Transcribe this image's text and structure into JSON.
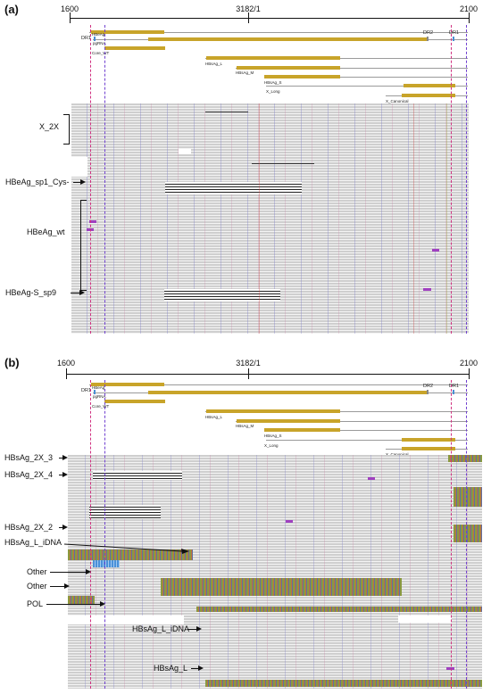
{
  "panels": [
    {
      "label": "(a)",
      "scale": {
        "left": "1600",
        "mid": "3182/1",
        "right": "2100"
      },
      "features": [
        "HBeAg",
        "DR1",
        "pgRNA",
        "Core_WT",
        "DR2",
        "DR1",
        "HBsAg_L",
        "HBsAg_M",
        "HBsAg_S",
        "X_Long",
        "X_Canonical"
      ],
      "groups": [
        "X_2X",
        "HBeAg_sp1_Cys-",
        "HBeAg_wt",
        "HBeAg-S_sp9"
      ]
    },
    {
      "label": "(b)",
      "scale": {
        "left": "1600",
        "mid": "3182/1",
        "right": "2100"
      },
      "features": [
        "HBeAg",
        "DR1",
        "pgRNA",
        "Core_WT",
        "DR2",
        "DR1",
        "HBsAg_L",
        "HBsAg_M",
        "HBsAg_S",
        "X_Long",
        "X_Canonical"
      ],
      "groups": [
        "HBsAg_2X_3",
        "HBsAg_2X_4",
        "HBsAg_2X_2",
        "HBsAg_L_iDNA",
        "Other",
        "Other",
        "POL",
        "HBsAg_L_iDNA",
        "HBsAg_L"
      ]
    }
  ]
}
